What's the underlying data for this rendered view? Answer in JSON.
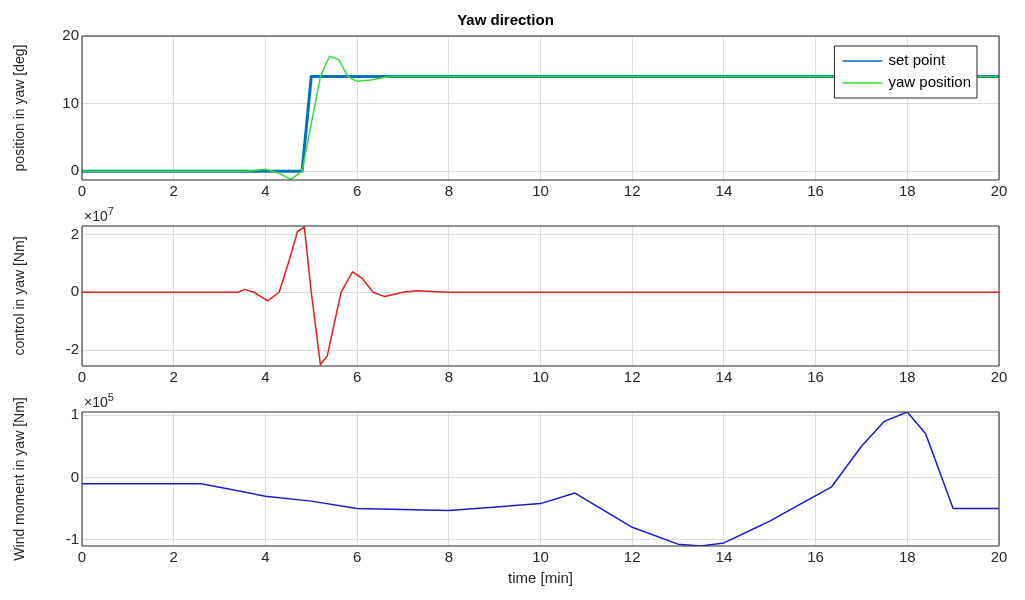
{
  "chart_data": [
    {
      "type": "line",
      "title": "Yaw direction",
      "ylabel": "position in yaw [deg]",
      "xlim": [
        0,
        20
      ],
      "xticks": [
        0,
        2,
        4,
        6,
        8,
        10,
        12,
        14,
        16,
        18,
        20
      ],
      "ylim": [
        -1.3,
        20
      ],
      "yticks": [
        0,
        10,
        20
      ],
      "grid": true,
      "legend": "top right",
      "series": [
        {
          "name": "set point",
          "color": "#0072bd",
          "x": [
            0,
            4.8,
            5.0,
            20
          ],
          "values": [
            0,
            0,
            14,
            14
          ]
        },
        {
          "name": "yaw position",
          "color": "#33dd33",
          "x": [
            0,
            3.6,
            4.0,
            4.3,
            4.55,
            4.8,
            5.0,
            5.2,
            5.4,
            5.6,
            5.8,
            6.0,
            6.3,
            6.7,
            7.0,
            20
          ],
          "values": [
            0,
            0,
            0.3,
            -0.3,
            -1.2,
            0,
            7,
            14,
            17,
            16.5,
            14,
            13.3,
            13.5,
            14,
            14,
            14
          ]
        }
      ]
    },
    {
      "type": "line",
      "ylabel": "control in yaw [Nm]",
      "annotations": [
        "×10$^{7}$"
      ],
      "xlim": [
        0,
        20
      ],
      "xticks": [
        0,
        2,
        4,
        6,
        8,
        10,
        12,
        14,
        16,
        18,
        20
      ],
      "ylim": [
        -2.55,
        2.29
      ],
      "yticks": [
        -2,
        0,
        2
      ],
      "grid": true,
      "series": [
        {
          "color": "#e02020",
          "x": [
            0,
            3.4,
            3.55,
            3.75,
            4.05,
            4.3,
            4.5,
            4.7,
            4.85,
            5.0,
            5.2,
            5.35,
            5.65,
            5.9,
            6.1,
            6.35,
            6.6,
            7.0,
            7.3,
            8,
            20
          ],
          "values": [
            0,
            0,
            0.1,
            0,
            -0.3,
            0,
            1,
            2.1,
            2.25,
            0,
            -2.5,
            -2.2,
            0,
            0.7,
            0.5,
            0,
            -0.15,
            0,
            0.05,
            0,
            0
          ]
        }
      ]
    },
    {
      "type": "line",
      "xlabel": "time [min]",
      "ylabel": "Wind moment in yaw [Nm]",
      "annotations": [
        "×10$^{5}$"
      ],
      "xlim": [
        0,
        20
      ],
      "xticks": [
        0,
        2,
        4,
        6,
        8,
        10,
        12,
        14,
        16,
        18,
        20
      ],
      "ylim": [
        -1.1,
        1.05
      ],
      "yticks": [
        -1,
        0,
        1
      ],
      "grid": true,
      "series": [
        {
          "color": "#1a1acc",
          "x": [
            0,
            2.6,
            4,
            5,
            6,
            8,
            10,
            10.75,
            12,
            13,
            13.5,
            14,
            15,
            16.35,
            17,
            17.5,
            18,
            18.4,
            19,
            20
          ],
          "values": [
            -0.1,
            -0.1,
            -0.3,
            -0.38,
            -0.5,
            -0.53,
            -0.42,
            -0.25,
            -0.8,
            -1.07,
            -1.1,
            -1.05,
            -0.7,
            -0.15,
            0.5,
            0.9,
            1.05,
            0.7,
            -0.5,
            -0.5
          ]
        }
      ]
    }
  ]
}
